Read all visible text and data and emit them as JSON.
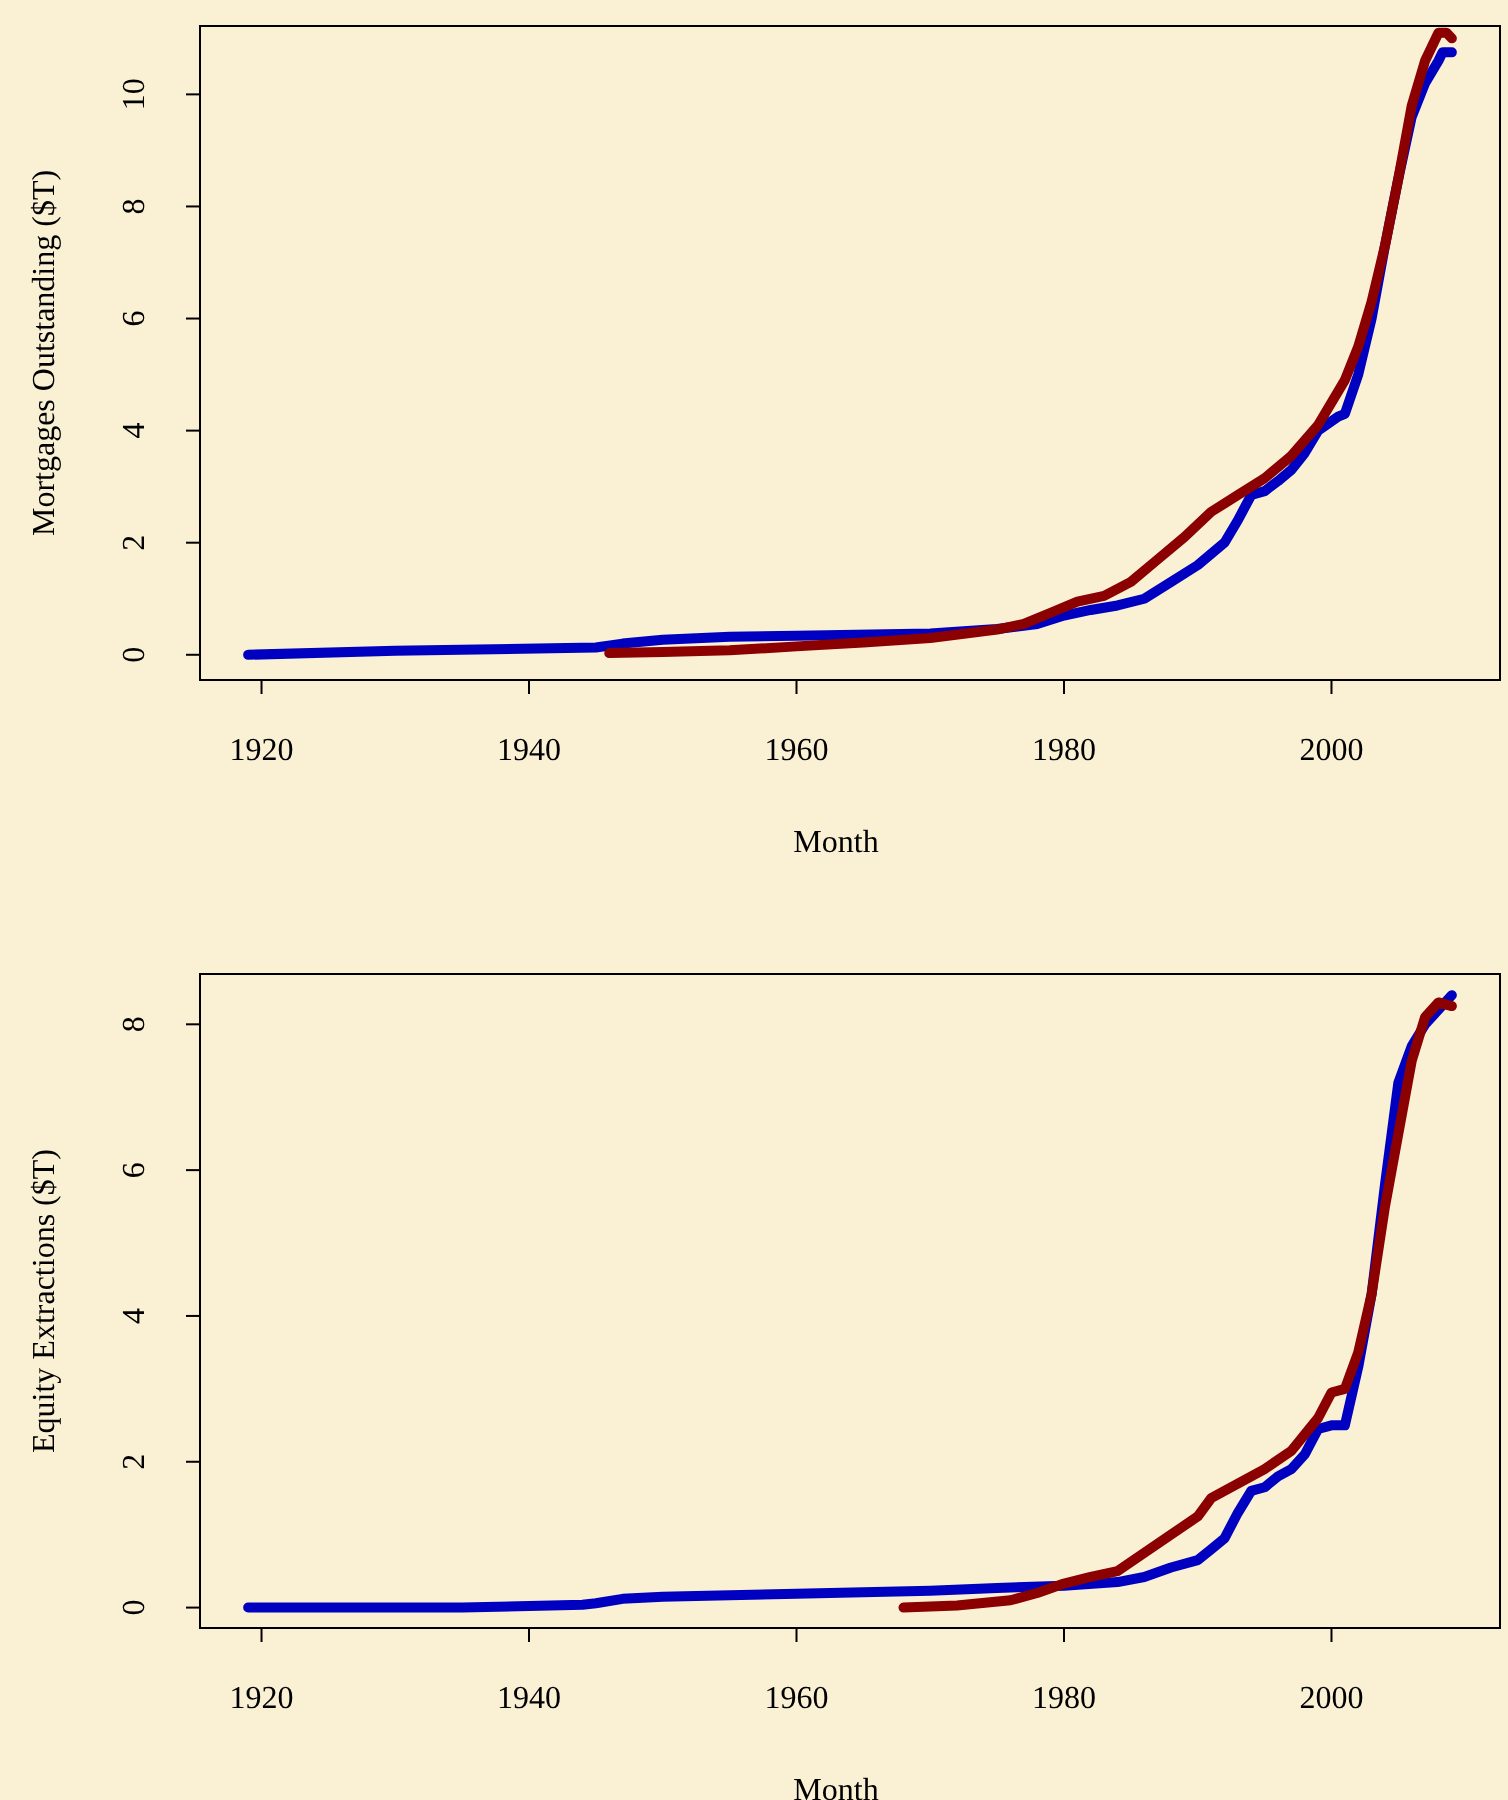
{
  "chart_data": [
    {
      "type": "line",
      "xlabel": "Month",
      "ylabel": "Mortgages Outstanding ($T)",
      "xlim": [
        1915.4,
        2012.6
      ],
      "ylim": [
        -0.45,
        11.22
      ],
      "xticks": [
        1920,
        1940,
        1960,
        1980,
        2000
      ],
      "yticks": [
        0,
        2,
        4,
        6,
        8,
        10
      ],
      "grid": false,
      "line_style": "solid",
      "marker": "none",
      "series": [
        {
          "color": "#0000c0",
          "x": [
            1919,
            1930,
            1945,
            1947,
            1950,
            1955,
            1960,
            1970,
            1975,
            1978,
            1980,
            1982,
            1984,
            1986,
            1988,
            1990,
            1991,
            1992,
            1993,
            1994,
            1995,
            1996,
            1997,
            1998,
            1999,
            2000.5,
            2001,
            2002,
            2003,
            2004,
            2005,
            2006,
            2007,
            2008,
            2008.3,
            2009
          ],
          "values": [
            0,
            0.07,
            0.13,
            0.2,
            0.27,
            0.32,
            0.34,
            0.38,
            0.46,
            0.55,
            0.7,
            0.8,
            0.88,
            1.0,
            1.3,
            1.6,
            1.8,
            2.0,
            2.4,
            2.85,
            2.92,
            3.1,
            3.3,
            3.6,
            4.0,
            4.25,
            4.3,
            5.0,
            6.0,
            7.3,
            8.5,
            9.6,
            10.2,
            10.6,
            10.75,
            10.75
          ]
        },
        {
          "color": "#8b0000",
          "x": [
            1946,
            1950,
            1955,
            1960,
            1965,
            1970,
            1975,
            1977,
            1979,
            1981,
            1983,
            1985,
            1987,
            1989,
            1991,
            1993,
            1995,
            1997,
            1999,
            2001,
            2002,
            2003,
            2004,
            2005,
            2006,
            2007,
            2008,
            2008.6,
            2009
          ],
          "values": [
            0.03,
            0.05,
            0.08,
            0.15,
            0.22,
            0.3,
            0.45,
            0.55,
            0.75,
            0.95,
            1.05,
            1.3,
            1.7,
            2.1,
            2.55,
            2.85,
            3.15,
            3.55,
            4.1,
            4.9,
            5.5,
            6.3,
            7.3,
            8.5,
            9.8,
            10.6,
            11.1,
            11.1,
            11.0
          ]
        }
      ]
    },
    {
      "type": "line",
      "xlabel": "Month",
      "ylabel": "Equity Extractions ($T)",
      "xlim": [
        1915.4,
        2012.6
      ],
      "ylim": [
        -0.28,
        8.69
      ],
      "xticks": [
        1920,
        1940,
        1960,
        1980,
        2000
      ],
      "yticks": [
        0,
        2,
        4,
        6,
        8
      ],
      "grid": false,
      "line_style": "solid",
      "marker": "none",
      "series": [
        {
          "color": "#0000c0",
          "x": [
            1919,
            1935,
            1944,
            1945,
            1947,
            1950,
            1955,
            1960,
            1970,
            1975,
            1980,
            1984,
            1986,
            1988,
            1990,
            1991,
            1992,
            1993,
            1994,
            1995,
            1996,
            1997,
            1998,
            1999,
            2000,
            2001,
            2002,
            2003,
            2004,
            2005,
            2006,
            2007,
            2008,
            2009
          ],
          "values": [
            0,
            0,
            0.04,
            0.06,
            0.12,
            0.15,
            0.17,
            0.19,
            0.23,
            0.27,
            0.3,
            0.35,
            0.42,
            0.55,
            0.65,
            0.8,
            0.95,
            1.3,
            1.6,
            1.65,
            1.8,
            1.9,
            2.1,
            2.45,
            2.5,
            2.5,
            3.3,
            4.3,
            5.8,
            7.2,
            7.7,
            8.0,
            8.2,
            8.4
          ]
        },
        {
          "color": "#8b0000",
          "x": [
            1968,
            1972,
            1976,
            1978,
            1980,
            1982,
            1984,
            1986,
            1988,
            1990,
            1991,
            1993,
            1995,
            1997,
            1999,
            2000,
            2001,
            2002,
            2003,
            2004,
            2005,
            2006,
            2007,
            2008,
            2009
          ],
          "values": [
            0,
            0.03,
            0.1,
            0.2,
            0.33,
            0.42,
            0.5,
            0.75,
            1.0,
            1.25,
            1.5,
            1.7,
            1.9,
            2.15,
            2.6,
            2.95,
            3.0,
            3.5,
            4.3,
            5.5,
            6.5,
            7.5,
            8.1,
            8.3,
            8.25
          ]
        }
      ]
    }
  ]
}
